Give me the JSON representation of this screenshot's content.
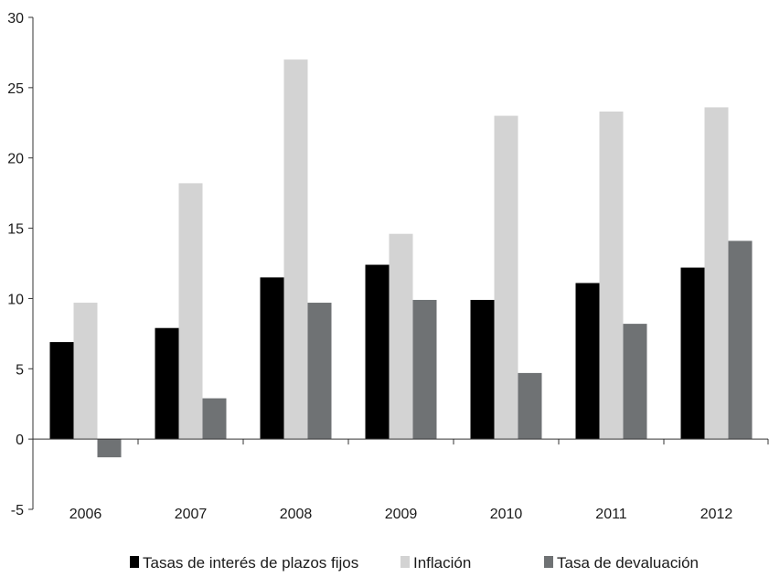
{
  "chart_data": {
    "type": "bar",
    "title": "",
    "xlabel": "",
    "ylabel": "",
    "categories": [
      "2006",
      "2007",
      "2008",
      "2009",
      "2010",
      "2011",
      "2012"
    ],
    "ylim": [
      -5,
      30
    ],
    "yticks": [
      -5,
      0,
      5,
      10,
      15,
      20,
      25,
      30
    ],
    "ytick_labels": [
      "-5",
      "0",
      "5",
      "10",
      "15",
      "20",
      "25",
      "30"
    ],
    "grid": false,
    "legend_position": "bottom",
    "series": [
      {
        "name": "Tasas de interés de plazos fijos",
        "color": "#000000",
        "values": [
          6.9,
          7.9,
          11.5,
          12.4,
          9.9,
          11.1,
          12.2
        ]
      },
      {
        "name": "Inflación",
        "color": "#d3d3d3",
        "values": [
          9.7,
          18.2,
          27.0,
          14.6,
          23.0,
          23.3,
          23.6
        ]
      },
      {
        "name": "Tasa de devaluación",
        "color": "#6f7274",
        "values": [
          -1.3,
          2.9,
          9.7,
          9.9,
          4.7,
          8.2,
          14.1
        ]
      }
    ]
  }
}
